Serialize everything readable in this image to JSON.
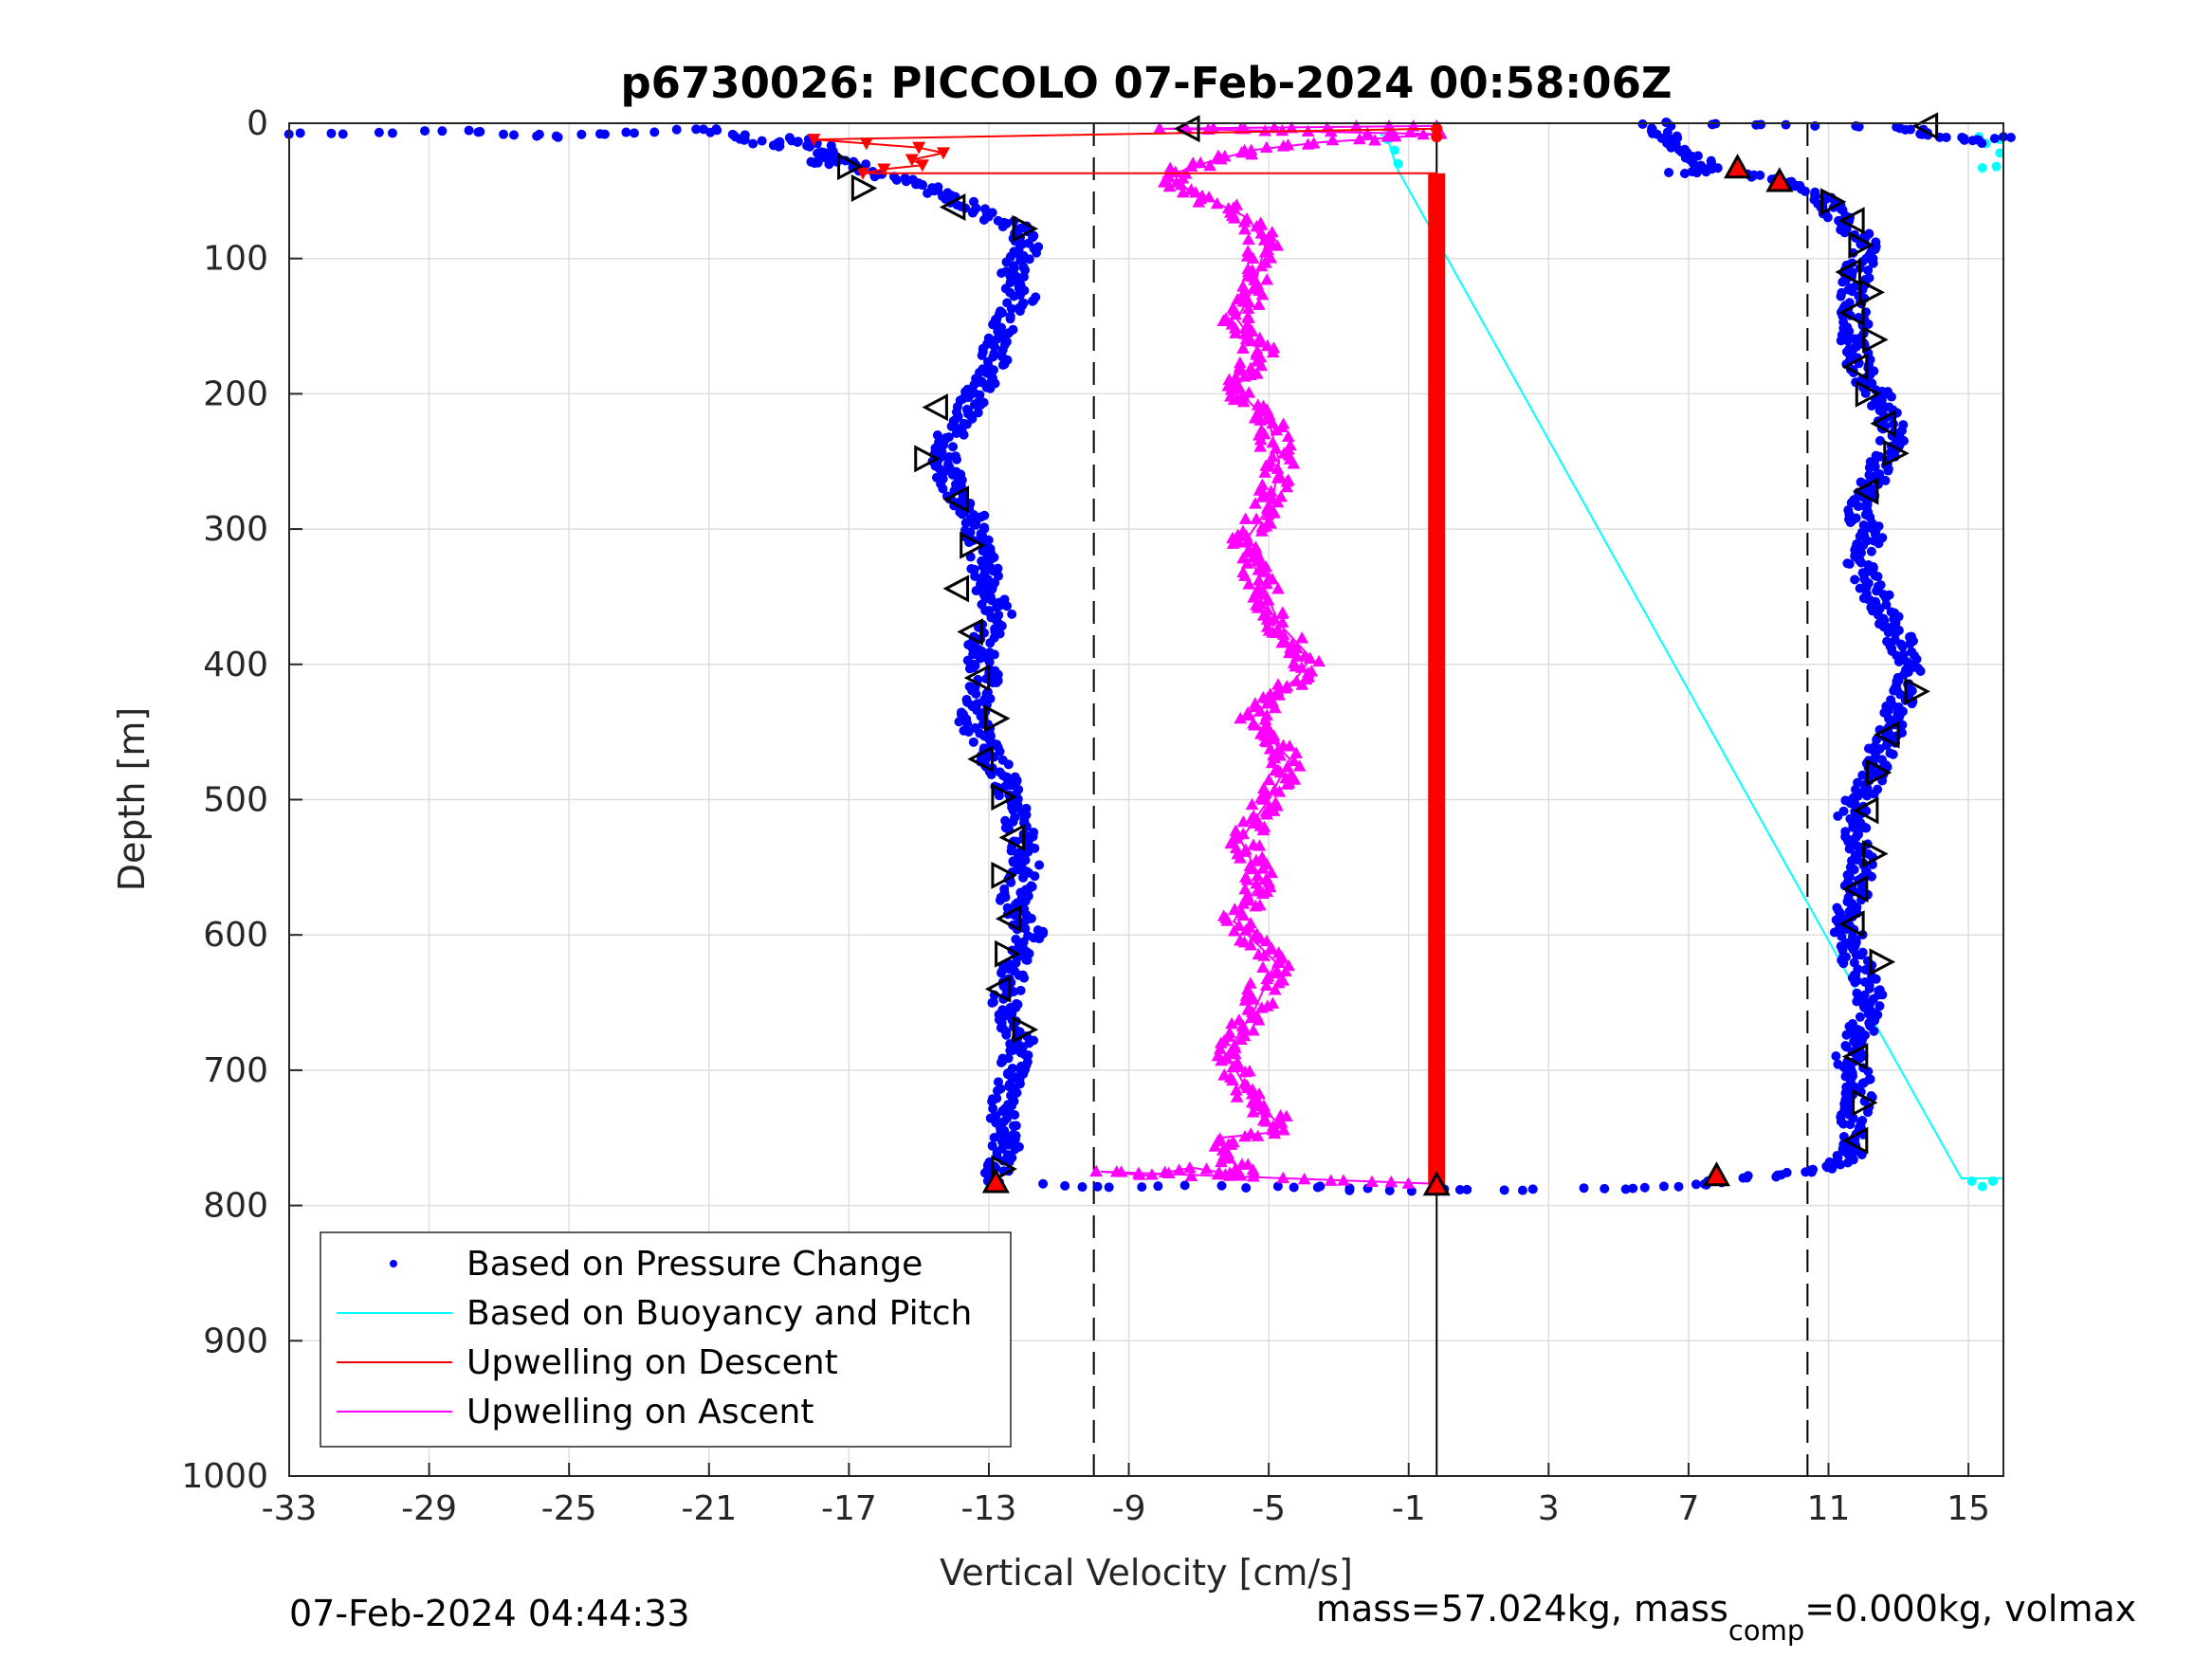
{
  "chart_data": {
    "type": "scatter",
    "title": "p6730026: PICCOLO 07-Feb-2024 00:58:06Z",
    "xlabel": "Vertical Velocity [cm/s]",
    "ylabel": "Depth [m]",
    "xlim": [
      -33,
      16
    ],
    "ylim": [
      0,
      1000
    ],
    "y_reversed": true,
    "grid": true,
    "x_ticks": [
      -33,
      -29,
      -25,
      -21,
      -17,
      -13,
      -9,
      -5,
      -1,
      3,
      7,
      11,
      15
    ],
    "y_ticks": [
      0,
      100,
      200,
      300,
      400,
      500,
      600,
      700,
      800,
      900,
      1000
    ],
    "legend_placement": "bottom-left",
    "reference_lines": [
      -10,
      -0.2,
      10.4
    ],
    "series": [
      {
        "name": "Based on Pressure Change",
        "marker": "dot",
        "color": "#0000ff",
        "descent": [
          [
            -33,
            8
          ],
          [
            -28,
            6
          ],
          [
            -25.5,
            10
          ],
          [
            -21,
            4
          ],
          [
            -19.8,
            13
          ],
          [
            -19.2,
            17
          ],
          [
            -18.3,
            11
          ],
          [
            -17.5,
            21
          ],
          [
            -17.8,
            31
          ],
          [
            -16.9,
            27
          ],
          [
            -16.2,
            37
          ],
          [
            -15.6,
            41
          ],
          [
            -15.0,
            45
          ],
          [
            -14.4,
            52
          ],
          [
            -13.8,
            58
          ],
          [
            -13.3,
            65
          ],
          [
            -12.7,
            72
          ],
          [
            -12.1,
            78
          ],
          [
            -11.9,
            90
          ],
          [
            -12.3,
            110
          ],
          [
            -12.0,
            130
          ],
          [
            -12.6,
            150
          ],
          [
            -12.8,
            170
          ],
          [
            -13.0,
            190
          ],
          [
            -13.6,
            210
          ],
          [
            -14.1,
            230
          ],
          [
            -14.3,
            255
          ],
          [
            -13.9,
            275
          ],
          [
            -13.4,
            295
          ],
          [
            -13.2,
            320
          ],
          [
            -13.0,
            345
          ],
          [
            -12.7,
            365
          ],
          [
            -13.3,
            385
          ],
          [
            -13.1,
            410
          ],
          [
            -13.5,
            440
          ],
          [
            -13.0,
            465
          ],
          [
            -12.5,
            490
          ],
          [
            -12.2,
            515
          ],
          [
            -11.9,
            545
          ],
          [
            -12.3,
            575
          ],
          [
            -11.8,
            600
          ],
          [
            -12.3,
            625
          ],
          [
            -12.6,
            650
          ],
          [
            -12.1,
            680
          ],
          [
            -12.4,
            705
          ],
          [
            -12.6,
            730
          ],
          [
            -12.5,
            755
          ],
          [
            -12.8,
            775
          ],
          [
            -12.7,
            783
          ]
        ],
        "ascent": [
          [
            -11.8,
            785
          ],
          [
            -8.0,
            786
          ],
          [
            -5.0,
            786
          ],
          [
            -3.2,
            787
          ],
          [
            -2.5,
            788
          ],
          [
            0.5,
            789
          ],
          [
            2.0,
            788
          ],
          [
            4.5,
            788
          ],
          [
            6.5,
            786
          ],
          [
            7.8,
            782
          ],
          [
            9.0,
            779
          ],
          [
            10.3,
            776
          ],
          [
            11.1,
            771
          ],
          [
            11.8,
            760
          ],
          [
            11.7,
            740
          ],
          [
            11.9,
            715
          ],
          [
            11.6,
            690
          ],
          [
            12.0,
            665
          ],
          [
            12.2,
            640
          ],
          [
            11.7,
            615
          ],
          [
            11.5,
            590
          ],
          [
            11.8,
            565
          ],
          [
            12.0,
            540
          ],
          [
            11.6,
            515
          ],
          [
            12.1,
            490
          ],
          [
            12.5,
            465
          ],
          [
            12.9,
            440
          ],
          [
            13.2,
            420
          ],
          [
            13.3,
            400
          ],
          [
            13.0,
            380
          ],
          [
            12.6,
            360
          ],
          [
            12.3,
            345
          ],
          [
            11.9,
            325
          ],
          [
            12.2,
            305
          ],
          [
            11.8,
            285
          ],
          [
            12.3,
            265
          ],
          [
            12.6,
            245
          ],
          [
            12.9,
            225
          ],
          [
            12.5,
            205
          ],
          [
            12.0,
            185
          ],
          [
            11.7,
            165
          ],
          [
            11.8,
            145
          ],
          [
            11.6,
            125
          ],
          [
            11.9,
            105
          ],
          [
            12.0,
            85
          ],
          [
            11.4,
            70
          ],
          [
            10.8,
            55
          ],
          [
            9.8,
            45
          ],
          [
            8.8,
            38
          ],
          [
            7.5,
            36
          ],
          [
            6.8,
            37
          ],
          [
            7.6,
            33
          ],
          [
            6.0,
            0
          ],
          [
            12.2,
            2
          ],
          [
            13.3,
            4
          ],
          [
            13.8,
            8
          ],
          [
            14.5,
            11
          ],
          [
            15.4,
            14
          ],
          [
            16.0,
            10
          ]
        ]
      },
      {
        "name": "Based on Buoyancy and Pitch",
        "marker": "line",
        "color": "#00ffff",
        "points": [
          [
            -1.8,
            8
          ],
          [
            -1.6,
            12
          ],
          [
            -1.5,
            20
          ],
          [
            -1.4,
            28
          ],
          [
            -1.3,
            35
          ],
          [
            14.8,
            780
          ],
          [
            16.0,
            780
          ]
        ]
      },
      {
        "name": "Upwelling on Descent",
        "marker": "triangle",
        "color": "#ff0000",
        "points": [
          [
            -0.2,
            4
          ],
          [
            -18.0,
            12
          ],
          [
            -16.5,
            15
          ],
          [
            -15.0,
            18
          ],
          [
            -14.3,
            22
          ],
          [
            -15.2,
            27
          ],
          [
            -14.9,
            31
          ],
          [
            -16.0,
            34
          ],
          [
            -16.6,
            37
          ],
          [
            -0.2,
            37
          ],
          [
            -0.2,
            100
          ],
          [
            -0.2,
            200
          ],
          [
            -0.2,
            300
          ],
          [
            -0.2,
            400
          ],
          [
            -0.2,
            500
          ],
          [
            -0.2,
            600
          ],
          [
            -0.2,
            700
          ],
          [
            -0.2,
            785
          ]
        ]
      },
      {
        "name": "Upwelling on Ascent",
        "marker": "triangle",
        "color": "#ff00ff",
        "points": [
          [
            -0.2,
            784
          ],
          [
            -9.8,
            775
          ],
          [
            -8.4,
            778
          ],
          [
            -7.2,
            772
          ],
          [
            -5.8,
            778
          ],
          [
            -6.4,
            750
          ],
          [
            -4.5,
            745
          ],
          [
            -5.5,
            720
          ],
          [
            -6.2,
            688
          ],
          [
            -5.4,
            655
          ],
          [
            -4.8,
            620
          ],
          [
            -6.0,
            590
          ],
          [
            -5.2,
            560
          ],
          [
            -5.8,
            530
          ],
          [
            -5.0,
            500
          ],
          [
            -4.4,
            470
          ],
          [
            -5.5,
            440
          ],
          [
            -4.2,
            410
          ],
          [
            -3.8,
            395
          ],
          [
            -4.7,
            370
          ],
          [
            -5.2,
            340
          ],
          [
            -5.7,
            310
          ],
          [
            -4.9,
            280
          ],
          [
            -4.7,
            250
          ],
          [
            -5.0,
            220
          ],
          [
            -6.0,
            195
          ],
          [
            -5.2,
            170
          ],
          [
            -5.9,
            145
          ],
          [
            -5.4,
            120
          ],
          [
            -5.1,
            90
          ],
          [
            -5.6,
            70
          ],
          [
            -6.8,
            55
          ],
          [
            -8.0,
            40
          ],
          [
            -6.9,
            30
          ],
          [
            -5.5,
            20
          ],
          [
            -3.5,
            14
          ],
          [
            -2.2,
            12
          ],
          [
            -0.2,
            8
          ],
          [
            -8.0,
            4
          ],
          [
            -0.2,
            2
          ]
        ]
      }
    ],
    "open_triangle_markers": [
      [
        13.8,
        2,
        "left"
      ],
      [
        -7.3,
        4,
        "left"
      ],
      [
        -17.0,
        32,
        "right"
      ],
      [
        -16.6,
        48,
        "right"
      ],
      [
        -14.0,
        62,
        "left"
      ],
      [
        -12.0,
        78,
        "right"
      ],
      [
        -14.5,
        210,
        "left"
      ],
      [
        -14.8,
        248,
        "right"
      ],
      [
        -13.9,
        278,
        "left"
      ],
      [
        -13.5,
        312,
        "right"
      ],
      [
        -13.9,
        344,
        "left"
      ],
      [
        -13.5,
        376,
        "left"
      ],
      [
        -13.3,
        410,
        "left"
      ],
      [
        -12.8,
        440,
        "right"
      ],
      [
        -13.2,
        470,
        "left"
      ],
      [
        -12.6,
        498,
        "right"
      ],
      [
        -12.3,
        528,
        "left"
      ],
      [
        -12.6,
        556,
        "right"
      ],
      [
        -12.4,
        588,
        "left"
      ],
      [
        -12.5,
        614,
        "right"
      ],
      [
        -12.7,
        640,
        "left"
      ],
      [
        -12.0,
        670,
        "right"
      ],
      [
        -12.6,
        773,
        "right"
      ],
      [
        11.1,
        58,
        "right"
      ],
      [
        11.7,
        72,
        "left"
      ],
      [
        11.9,
        90,
        "right"
      ],
      [
        11.6,
        110,
        "left"
      ],
      [
        12.2,
        125,
        "right"
      ],
      [
        11.7,
        140,
        "left"
      ],
      [
        12.3,
        160,
        "right"
      ],
      [
        11.8,
        180,
        "left"
      ],
      [
        12.1,
        200,
        "right"
      ],
      [
        12.6,
        222,
        "left"
      ],
      [
        12.9,
        244,
        "right"
      ],
      [
        12.1,
        272,
        "left"
      ],
      [
        13.5,
        420,
        "right"
      ],
      [
        12.7,
        452,
        "left"
      ],
      [
        12.4,
        480,
        "right"
      ],
      [
        12.1,
        508,
        "left"
      ],
      [
        12.3,
        540,
        "right"
      ],
      [
        11.8,
        566,
        "left"
      ],
      [
        11.7,
        592,
        "left"
      ],
      [
        12.5,
        620,
        "right"
      ],
      [
        11.8,
        690,
        "left"
      ],
      [
        12.0,
        724,
        "right"
      ],
      [
        11.8,
        752,
        "left"
      ]
    ],
    "filled_triangle_markers": [
      [
        8.4,
        33
      ],
      [
        9.6,
        43
      ],
      [
        7.8,
        778
      ],
      [
        -12.8,
        783
      ],
      [
        -0.2,
        785
      ]
    ],
    "footer_left": "07-Feb-2024 04:44:33",
    "footer_right_main": "mass=57.024kg, mass",
    "footer_right_sub": "comp",
    "footer_right_tail": "=0.000kg, volmax"
  }
}
